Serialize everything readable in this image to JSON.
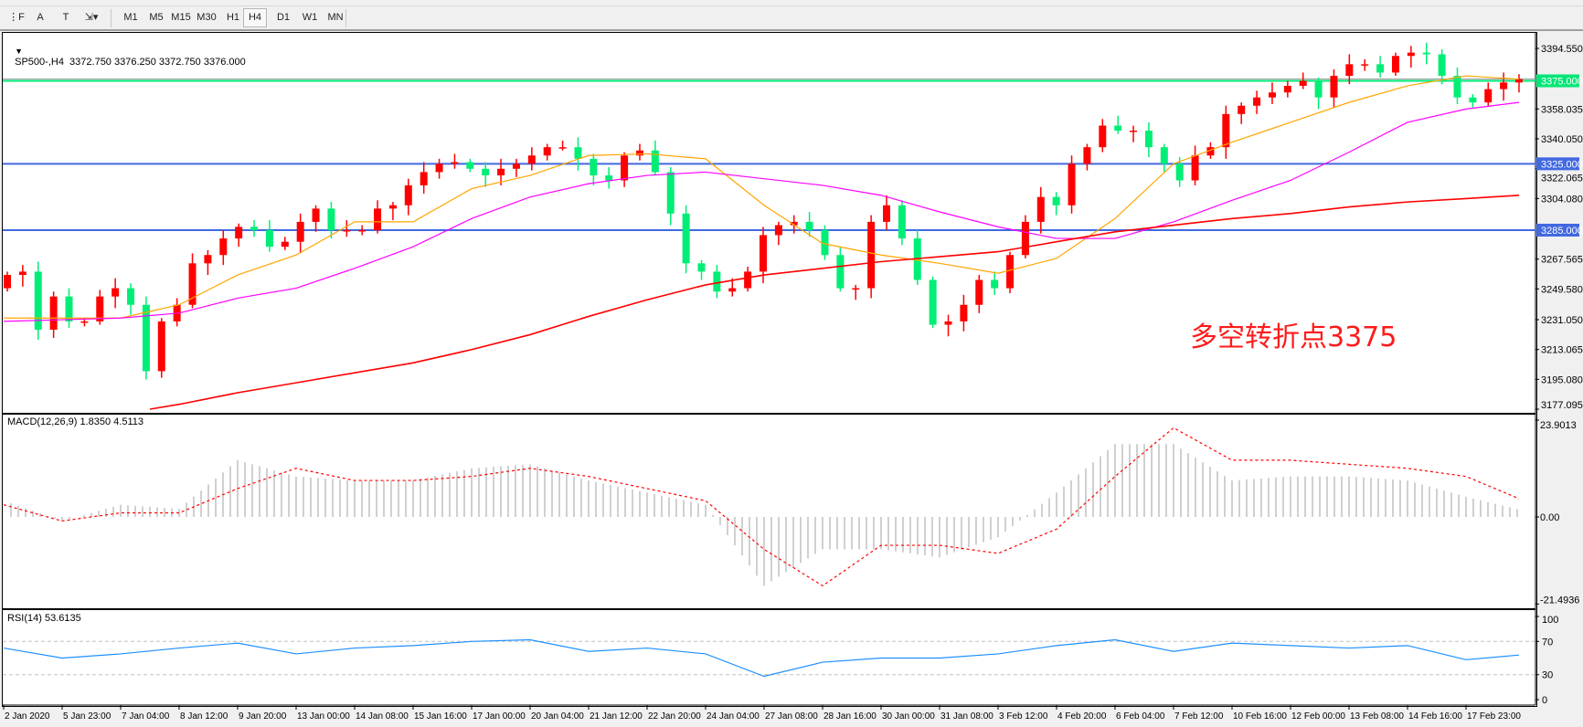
{
  "toolbar": {
    "tools": [
      {
        "name": "period-separator-icon",
        "glyph": "⋮F"
      },
      {
        "name": "text-tool-icon",
        "glyph": "A"
      },
      {
        "name": "text-label-tool-icon",
        "glyph": "T"
      },
      {
        "name": "arrow-tool-icon",
        "glyph": "⇲▾"
      }
    ],
    "timeframes": [
      "M1",
      "M5",
      "M15",
      "M30",
      "H1",
      "H4",
      "D1",
      "W1",
      "MN"
    ],
    "active_timeframe": "H4"
  },
  "main": {
    "legend": "SP500-,H4  3372.750 3376.250 3372.750 3376.000",
    "annotation": "多空转折点3375",
    "price_ticks": [
      "3394.550",
      "3358.035",
      "3340.050",
      "3322.065",
      "3304.080",
      "3267.565",
      "3249.580",
      "3231.050",
      "3213.065",
      "3195.080",
      "3177.095"
    ],
    "hlines": [
      {
        "price": 3375,
        "label": "3375.000",
        "color": "#00e676"
      },
      {
        "price": 3325,
        "label": "3325.000",
        "color": "#4169e1"
      },
      {
        "price": 3285,
        "label": "3285.000",
        "color": "#4169e1"
      }
    ]
  },
  "macd": {
    "legend": "MACD(12,26,9) 1.8350 4.5113",
    "ticks": [
      "23.9013",
      "0.00",
      "-21.4936"
    ]
  },
  "rsi": {
    "legend": "RSI(14) 53.6135",
    "ticks": [
      "100",
      "70",
      "30",
      "0"
    ],
    "levels": [
      70,
      30
    ]
  },
  "time_axis": [
    "2 Jan 2020",
    "5 Jan 23:00",
    "7 Jan 04:00",
    "8 Jan 12:00",
    "9 Jan 20:00",
    "13 Jan 00:00",
    "14 Jan 08:00",
    "15 Jan 16:00",
    "17 Jan 00:00",
    "20 Jan 04:00",
    "21 Jan 12:00",
    "22 Jan 20:00",
    "24 Jan 04:00",
    "27 Jan 08:00",
    "28 Jan 16:00",
    "30 Jan 00:00",
    "31 Jan 08:00",
    "3 Feb 12:00",
    "4 Feb 20:00",
    "6 Feb 04:00",
    "7 Feb 12:00",
    "10 Feb 16:00",
    "12 Feb 00:00",
    "13 Feb 08:00",
    "14 Feb 16:00",
    "17 Feb 23:00"
  ],
  "chart_data": {
    "type": "candlestick",
    "symbol": "SP500-",
    "timeframe": "H4",
    "price_range": [
      3177.095,
      3394.55
    ],
    "bull_color": "#ff0000",
    "bear_color": "#00ee76",
    "first_open": 3250,
    "closes": [
      3258,
      3260,
      3225,
      3245,
      3230,
      3230,
      3245,
      3250,
      3240,
      3200,
      3230,
      3240,
      3265,
      3270,
      3280,
      3287,
      3285,
      3275,
      3278,
      3290,
      3298,
      3285,
      3285,
      3285,
      3298,
      3300,
      3312,
      3320,
      3325,
      3326,
      3322,
      3318,
      3322,
      3325,
      3330,
      3335,
      3335,
      3328,
      3318,
      3315,
      3330,
      3333,
      3320,
      3295,
      3265,
      3260,
      3248,
      3250,
      3260,
      3282,
      3288,
      3290,
      3285,
      3270,
      3250,
      3250,
      3290,
      3300,
      3280,
      3255,
      3228,
      3230,
      3240,
      3255,
      3250,
      3270,
      3290,
      3305,
      3300,
      3325,
      3335,
      3348,
      3345,
      3345,
      3335,
      3325,
      3315,
      3330,
      3335,
      3355,
      3360,
      3365,
      3368,
      3372,
      3375,
      3365,
      3378,
      3385,
      3385,
      3380,
      3390,
      3392,
      3391,
      3378,
      3365,
      3362,
      3370,
      3374,
      3376
    ],
    "moving_averages_at_time_ticks": [
      {
        "color": "#ffa500",
        "values": [
          3232,
          3232,
          3232,
          3240,
          3258,
          3270,
          3290,
          3290,
          3310,
          3318,
          3330,
          3331,
          3328,
          3300,
          3277,
          3270,
          3265,
          3259,
          3268,
          3292,
          3325,
          3338,
          3350,
          3362,
          3372,
          3378
        ],
        "last": 3376
      },
      {
        "color": "#ff00ff",
        "values": [
          3230,
          3231,
          3232,
          3235,
          3244,
          3250,
          3262,
          3275,
          3292,
          3305,
          3313,
          3318,
          3320,
          3316,
          3312,
          3306,
          3296,
          3287,
          3280,
          3280,
          3290,
          3303,
          3315,
          3332,
          3350,
          3358
        ],
        "last": 3362
      },
      {
        "color": "#ff0000",
        "values": [
          null,
          null,
          null,
          3180,
          3187,
          3193,
          3199,
          3205,
          3213,
          3222,
          3233,
          3243,
          3252,
          3258,
          3262,
          3266,
          3269,
          3272,
          3278,
          3284,
          3288,
          3292,
          3295,
          3299,
          3302,
          3304
        ],
        "last": 3306
      }
    ],
    "macd": {
      "range": [
        -21.4936,
        23.9013
      ],
      "histogram_color": "#c0c0c0",
      "signal_color": "#ff0000",
      "histogram_at_time_ticks": [
        4,
        -1,
        3,
        2,
        14,
        10,
        9,
        9,
        12,
        13,
        9,
        6,
        3,
        -17,
        -8,
        -8,
        -10,
        -5,
        6,
        18,
        18,
        9,
        10,
        10,
        9,
        5
      ],
      "histogram_last": 1.835,
      "signal_at_time_ticks": [
        3,
        -1,
        1,
        1,
        7,
        12,
        9,
        9,
        10,
        12,
        10,
        7,
        4,
        -8,
        -17,
        -7,
        -7,
        -9,
        -3,
        10,
        22,
        14,
        14,
        13,
        12,
        10
      ],
      "signal_last": 4.5113
    },
    "rsi": {
      "range": [
        0,
        100
      ],
      "color": "#1e90ff",
      "at_time_ticks": [
        62,
        50,
        55,
        62,
        68,
        55,
        62,
        65,
        70,
        72,
        58,
        62,
        55,
        28,
        45,
        50,
        50,
        55,
        65,
        72,
        58,
        68,
        65,
        62,
        65,
        48
      ],
      "last": 53.6135
    }
  }
}
